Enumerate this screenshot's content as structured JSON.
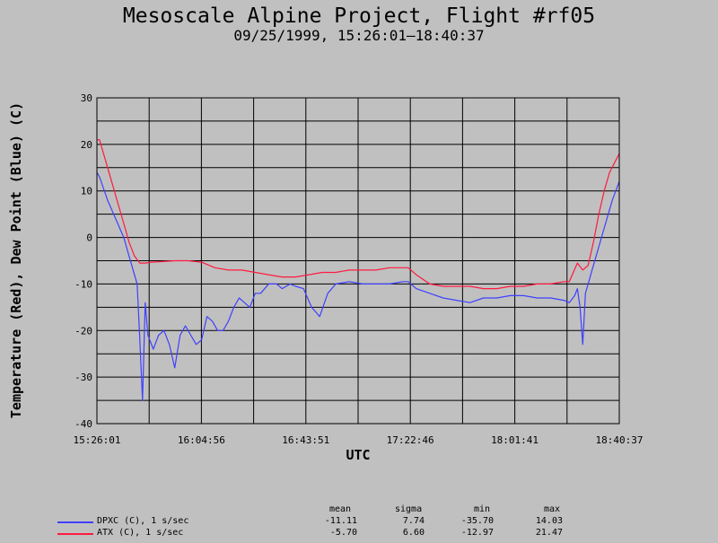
{
  "chart_data": {
    "type": "line",
    "title": "Mesoscale Alpine Project, Flight #rf05",
    "subtitle": "09/25/1999, 15:26:01–18:40:37",
    "xlabel": "UTC",
    "ylabel": "Temperature (Red), Dew Point (Blue) (C)",
    "xlim": [
      "15:26:01",
      "18:40:37"
    ],
    "ylim": [
      -40,
      30
    ],
    "x_ticks": [
      "15:26:01",
      "16:04:56",
      "16:43:51",
      "17:22:46",
      "18:01:41",
      "18:40:37"
    ],
    "y_ticks": [
      "30",
      "20",
      "10",
      "0",
      "-10",
      "-20",
      "-30",
      "-40"
    ],
    "grid": true,
    "series": [
      {
        "name": "ATX (C), 1 s/sec",
        "color": "#ff1a40",
        "x": [
          "15:26:01",
          "15:27:00",
          "15:30:00",
          "15:33:00",
          "15:36:00",
          "15:38:00",
          "15:40:00",
          "15:42:00",
          "15:44:00",
          "15:46:00",
          "15:50:00",
          "15:55:00",
          "16:00:00",
          "16:05:00",
          "16:10:00",
          "16:15:00",
          "16:20:00",
          "16:25:00",
          "16:30:00",
          "16:35:00",
          "16:40:00",
          "16:45:00",
          "16:50:00",
          "16:55:00",
          "17:00:00",
          "17:05:00",
          "17:10:00",
          "17:15:00",
          "17:20:00",
          "17:22:00",
          "17:25:00",
          "17:30:00",
          "17:35:00",
          "17:40:00",
          "17:45:00",
          "17:50:00",
          "17:55:00",
          "18:00:00",
          "18:05:00",
          "18:10:00",
          "18:15:00",
          "18:20:00",
          "18:22:00",
          "18:25:00",
          "18:27:00",
          "18:29:00",
          "18:31:00",
          "18:33:00",
          "18:35:00",
          "18:37:00",
          "18:40:37"
        ],
        "values": [
          21,
          21,
          15,
          9,
          3,
          -1,
          -4,
          -5.5,
          -5.5,
          -5.3,
          -5.2,
          -5,
          -5,
          -5.3,
          -6.5,
          -7,
          -7,
          -7.5,
          -8,
          -8.5,
          -8.5,
          -8,
          -7.5,
          -7.5,
          -7,
          -7,
          -7,
          -6.5,
          -6.5,
          -6.5,
          -8,
          -10,
          -10.5,
          -10.5,
          -10.5,
          -11,
          -11,
          -10.5,
          -10.5,
          -10,
          -10,
          -9.5,
          -9.5,
          -5.5,
          -7,
          -6,
          -1,
          5,
          10,
          14,
          18
        ]
      },
      {
        "name": "DPXC (C), 1 s/sec",
        "color": "#4040ff",
        "x": [
          "15:26:01",
          "15:27:00",
          "15:30:00",
          "15:33:00",
          "15:36:00",
          "15:38:00",
          "15:40:00",
          "15:41:00",
          "15:42:00",
          "15:43:00",
          "15:44:00",
          "15:45:00",
          "15:47:00",
          "15:49:00",
          "15:51:00",
          "15:53:00",
          "15:55:00",
          "15:57:00",
          "15:59:00",
          "16:01:00",
          "16:03:00",
          "16:05:00",
          "16:07:00",
          "16:09:00",
          "16:11:00",
          "16:13:00",
          "16:15:00",
          "16:17:00",
          "16:19:00",
          "16:21:00",
          "16:23:00",
          "16:25:00",
          "16:27:00",
          "16:30:00",
          "16:33:00",
          "16:35:00",
          "16:38:00",
          "16:40:00",
          "16:43:00",
          "16:46:00",
          "16:49:00",
          "16:52:00",
          "16:55:00",
          "17:00:00",
          "17:05:00",
          "17:10:00",
          "17:15:00",
          "17:20:00",
          "17:22:00",
          "17:25:00",
          "17:30:00",
          "17:35:00",
          "17:40:00",
          "17:45:00",
          "17:50:00",
          "17:55:00",
          "18:00:00",
          "18:05:00",
          "18:10:00",
          "18:15:00",
          "18:20:00",
          "18:22:00",
          "18:24:00",
          "18:25:00",
          "18:26:00",
          "18:27:00",
          "18:28:00",
          "18:29:00",
          "18:30:00",
          "18:32:00",
          "18:34:00",
          "18:36:00",
          "18:38:00",
          "18:40:37"
        ],
        "values": [
          14,
          13,
          8,
          4,
          0,
          -4,
          -8,
          -10,
          -22,
          -35,
          -14,
          -21,
          -24,
          -21,
          -20,
          -23,
          -28,
          -21,
          -19,
          -21,
          -23,
          -22,
          -17,
          -18,
          -20,
          -20,
          -18,
          -15,
          -13,
          -14,
          -15,
          -12,
          -12,
          -10,
          -10,
          -11,
          -10,
          -10.5,
          -11,
          -15,
          -17,
          -12,
          -10,
          -9.5,
          -10,
          -10,
          -10,
          -9.5,
          -9.5,
          -11,
          -12,
          -13,
          -13.5,
          -14,
          -13,
          -13,
          -12.5,
          -12.5,
          -13,
          -13,
          -13.5,
          -14,
          -12.5,
          -11,
          -15,
          -23,
          -12,
          -10,
          -8,
          -4,
          0,
          4,
          8,
          12
        ]
      }
    ],
    "legend_placement": "bottom-left",
    "stats_headers": [
      "mean",
      "sigma",
      "min",
      "max"
    ],
    "stats": [
      {
        "name": "DPXC (C), 1 s/sec",
        "color": "#4040ff",
        "mean": "-11.11",
        "sigma": "7.74",
        "min": "-35.70",
        "max": "14.03"
      },
      {
        "name": "ATX (C), 1 s/sec",
        "color": "#ff1a40",
        "mean": "-5.70",
        "sigma": "6.60",
        "min": "-12.97",
        "max": "21.47"
      }
    ]
  }
}
